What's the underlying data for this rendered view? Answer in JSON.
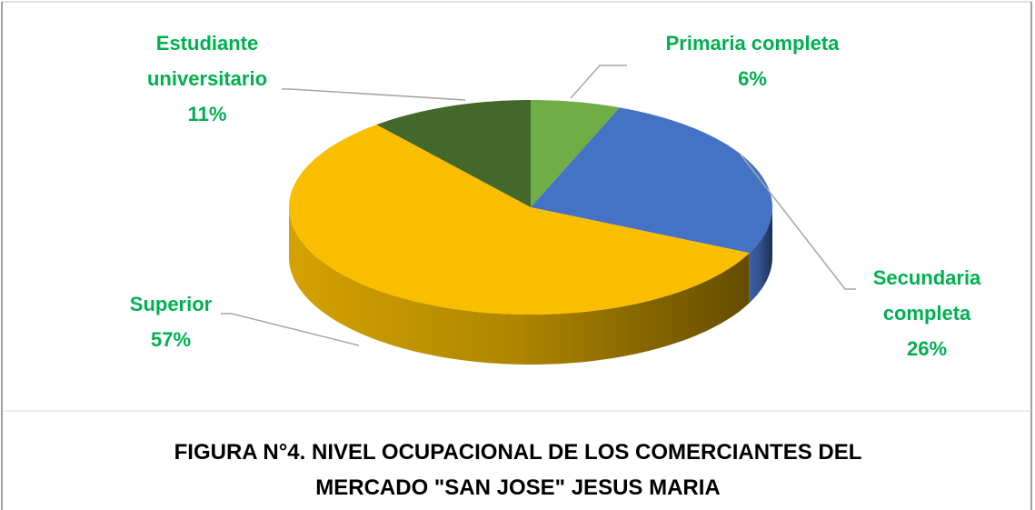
{
  "chart_data": {
    "type": "pie",
    "title": "FIGURA N°4. NIVEL OCUPACIONAL DE LOS COMERCIANTES DEL MERCADO \"SAN JOSE\" JESUS MARIA",
    "categories": [
      "Primaria completa",
      "Secundaria completa",
      "Superior",
      "Estudiante universitario"
    ],
    "values": [
      6,
      26,
      57,
      11
    ],
    "value_labels": [
      "6%",
      "26%",
      "57%",
      "11%"
    ],
    "colors": [
      "#70ad47",
      "#4472c4",
      "#f9be00",
      "#43682b"
    ],
    "label_color": "#00b050"
  }
}
